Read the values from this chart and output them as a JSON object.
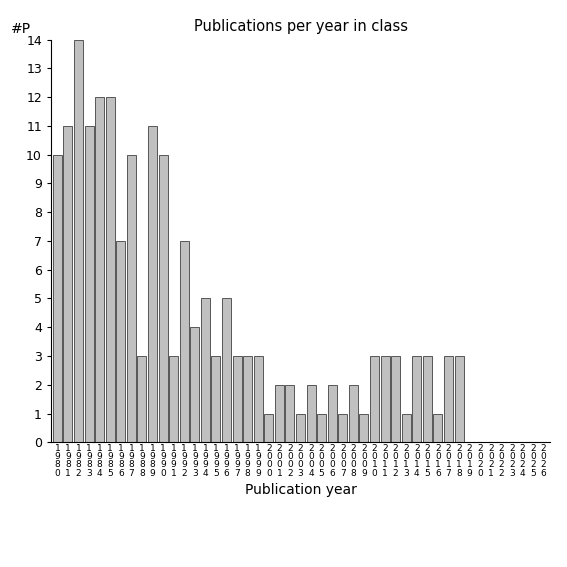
{
  "title": "Publications per year in class",
  "xlabel": "Publication year",
  "ylabel": "#P",
  "bar_color": "#c0c0c0",
  "edge_color": "#404040",
  "years": [
    1980,
    1981,
    1982,
    1983,
    1984,
    1985,
    1986,
    1987,
    1988,
    1989,
    1990,
    1991,
    1992,
    1993,
    1994,
    1995,
    1996,
    1997,
    1998,
    1999,
    2000,
    2001,
    2002,
    2003,
    2004,
    2005,
    2006,
    2007,
    2008,
    2009,
    2010,
    2011,
    2012,
    2013,
    2014,
    2015,
    2016,
    2017,
    2018,
    2019,
    2020,
    2021,
    2022,
    2023,
    2024,
    2025,
    2026
  ],
  "values": [
    10,
    11,
    14,
    11,
    12,
    12,
    7,
    10,
    3,
    11,
    10,
    3,
    7,
    4,
    5,
    3,
    5,
    3,
    3,
    3,
    1,
    2,
    2,
    1,
    2,
    1,
    2,
    1,
    2,
    1,
    3,
    3,
    3,
    1,
    3,
    3,
    1,
    3,
    3,
    0,
    0,
    0,
    0,
    0,
    0,
    0,
    0
  ],
  "ylim": [
    0,
    14
  ],
  "yticks": [
    0,
    1,
    2,
    3,
    4,
    5,
    6,
    7,
    8,
    9,
    10,
    11,
    12,
    13,
    14
  ],
  "figsize": [
    5.67,
    5.67
  ],
  "dpi": 100
}
